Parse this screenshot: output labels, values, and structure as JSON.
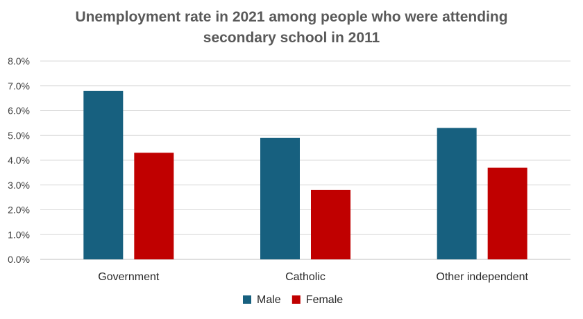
{
  "chart_data": {
    "type": "bar",
    "title_lines": [
      "Unemployment rate in 2021 among people who were attending",
      "secondary school in 2011"
    ],
    "categories": [
      "Government",
      "Catholic",
      "Other independent"
    ],
    "series": [
      {
        "name": "Male",
        "color": "#17607f",
        "values": [
          0.068,
          0.049,
          0.053
        ]
      },
      {
        "name": "Female",
        "color": "#c00000",
        "values": [
          0.043,
          0.028,
          0.037
        ]
      }
    ],
    "ylim": [
      0,
      0.08
    ],
    "y_ticks": [
      0,
      0.01,
      0.02,
      0.03,
      0.04,
      0.05,
      0.06,
      0.07,
      0.08
    ],
    "y_tick_labels": [
      "0.0%",
      "1.0%",
      "2.0%",
      "3.0%",
      "4.0%",
      "5.0%",
      "6.0%",
      "7.0%",
      "8.0%"
    ],
    "grid": true,
    "legend_position": "bottom-center",
    "xlabel": "",
    "ylabel": ""
  }
}
